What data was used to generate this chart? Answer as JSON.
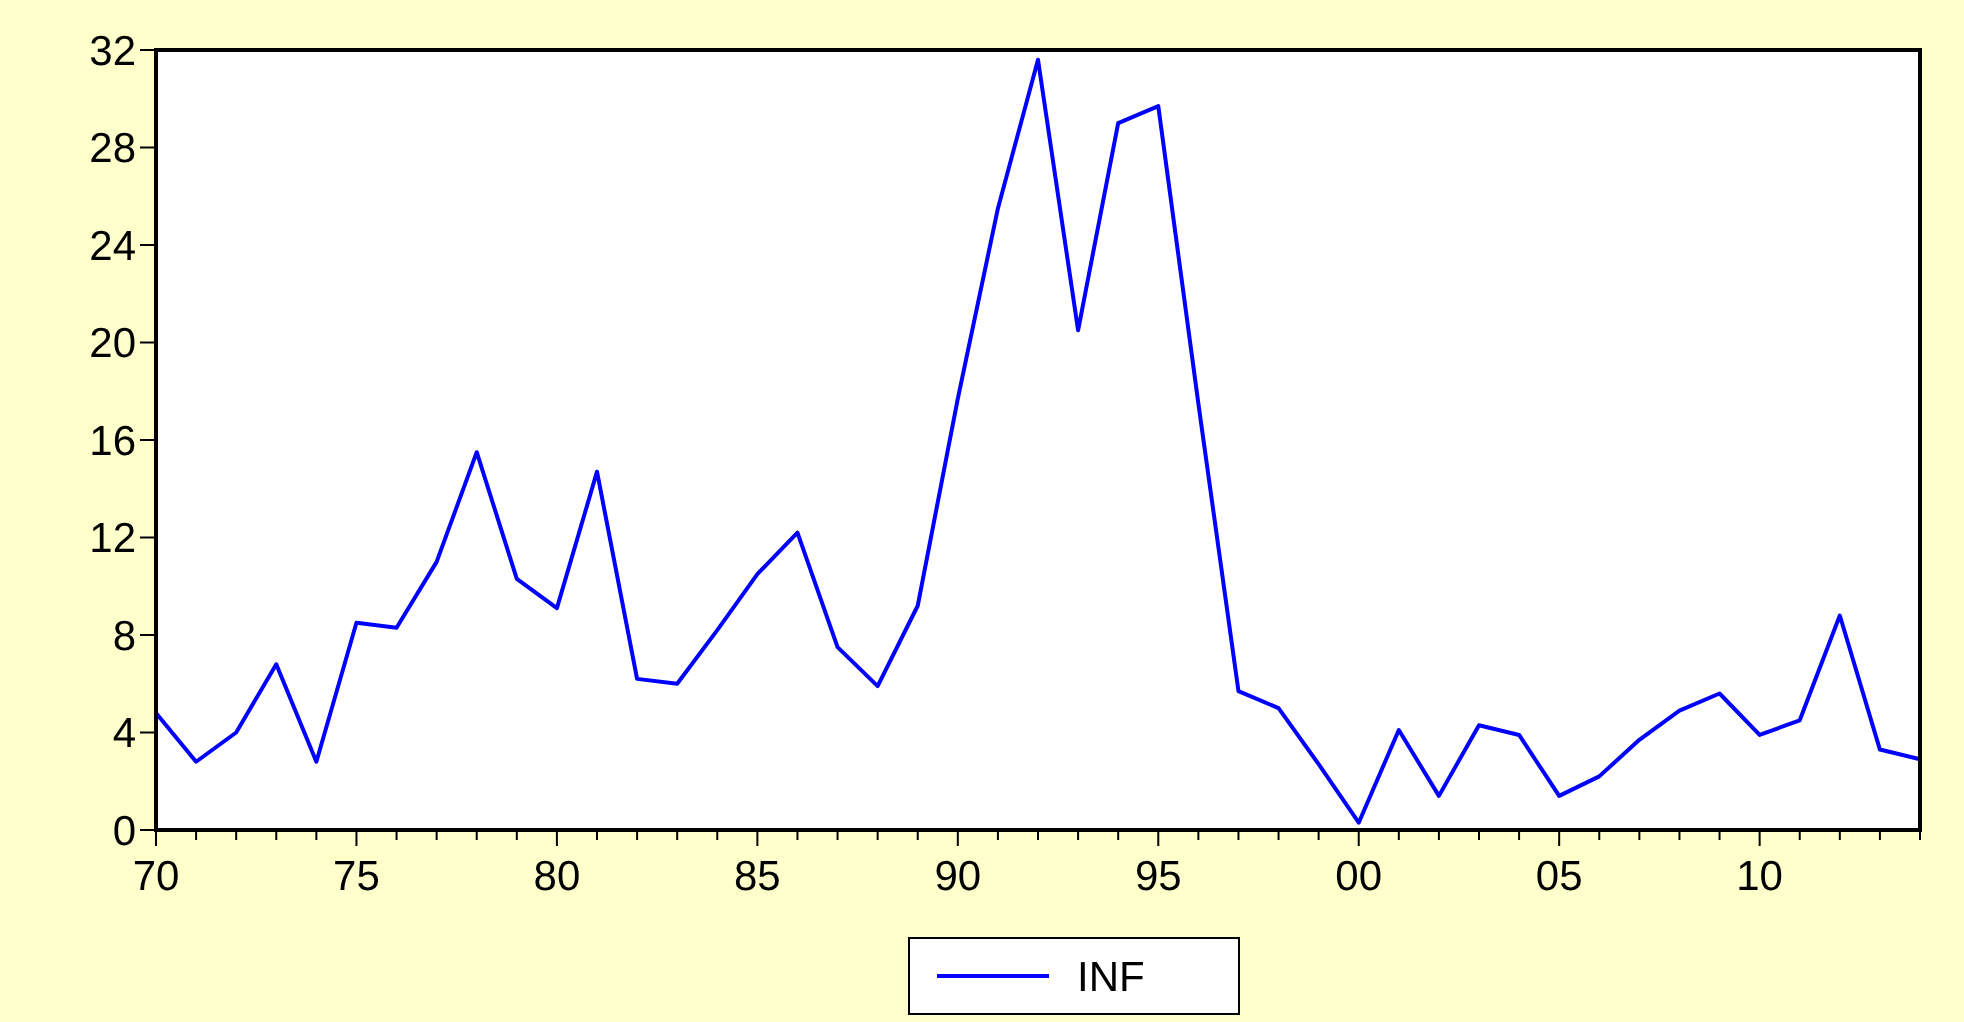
{
  "chart_data": {
    "type": "line",
    "x": [
      1970,
      1971,
      1972,
      1973,
      1974,
      1975,
      1976,
      1977,
      1978,
      1979,
      1980,
      1981,
      1982,
      1983,
      1984,
      1985,
      1986,
      1987,
      1988,
      1989,
      1990,
      1991,
      1992,
      1993,
      1994,
      1995,
      1996,
      1997,
      1998,
      1999,
      2000,
      2001,
      2002,
      2003,
      2004,
      2005,
      2006,
      2007,
      2008,
      2009,
      2010,
      2011,
      2012,
      2013,
      2014
    ],
    "series": [
      {
        "name": "INF",
        "color": "#0000ff",
        "values": [
          4.8,
          2.8,
          4.0,
          6.8,
          2.8,
          8.5,
          8.3,
          11.0,
          15.5,
          10.3,
          9.1,
          14.7,
          6.2,
          6.0,
          8.2,
          10.5,
          12.2,
          7.5,
          5.9,
          9.2,
          17.7,
          25.5,
          31.6,
          20.5,
          29.0,
          29.7,
          17.5,
          5.7,
          5.0,
          2.7,
          0.3,
          4.1,
          1.4,
          4.3,
          3.9,
          1.4,
          2.2,
          3.7,
          4.9,
          5.6,
          3.9,
          4.5,
          8.8,
          3.3,
          2.9
        ]
      }
    ],
    "xlim": [
      1970,
      2014
    ],
    "xticks": [
      {
        "value": 1970,
        "label": "70"
      },
      {
        "value": 1971,
        "label": null
      },
      {
        "value": 1972,
        "label": null
      },
      {
        "value": 1973,
        "label": null
      },
      {
        "value": 1974,
        "label": null
      },
      {
        "value": 1975,
        "label": "75"
      },
      {
        "value": 1976,
        "label": null
      },
      {
        "value": 1977,
        "label": null
      },
      {
        "value": 1978,
        "label": null
      },
      {
        "value": 1979,
        "label": null
      },
      {
        "value": 1980,
        "label": "80"
      },
      {
        "value": 1981,
        "label": null
      },
      {
        "value": 1982,
        "label": null
      },
      {
        "value": 1983,
        "label": null
      },
      {
        "value": 1984,
        "label": null
      },
      {
        "value": 1985,
        "label": "85"
      },
      {
        "value": 1986,
        "label": null
      },
      {
        "value": 1987,
        "label": null
      },
      {
        "value": 1988,
        "label": null
      },
      {
        "value": 1989,
        "label": null
      },
      {
        "value": 1990,
        "label": "90"
      },
      {
        "value": 1991,
        "label": null
      },
      {
        "value": 1992,
        "label": null
      },
      {
        "value": 1993,
        "label": null
      },
      {
        "value": 1994,
        "label": null
      },
      {
        "value": 1995,
        "label": "95"
      },
      {
        "value": 1996,
        "label": null
      },
      {
        "value": 1997,
        "label": null
      },
      {
        "value": 1998,
        "label": null
      },
      {
        "value": 1999,
        "label": null
      },
      {
        "value": 2000,
        "label": "00"
      },
      {
        "value": 2001,
        "label": null
      },
      {
        "value": 2002,
        "label": null
      },
      {
        "value": 2003,
        "label": null
      },
      {
        "value": 2004,
        "label": null
      },
      {
        "value": 2005,
        "label": "05"
      },
      {
        "value": 2006,
        "label": null
      },
      {
        "value": 2007,
        "label": null
      },
      {
        "value": 2008,
        "label": null
      },
      {
        "value": 2009,
        "label": null
      },
      {
        "value": 2010,
        "label": "10"
      },
      {
        "value": 2011,
        "label": null
      },
      {
        "value": 2012,
        "label": null
      },
      {
        "value": 2013,
        "label": null
      },
      {
        "value": 2014,
        "label": null
      }
    ],
    "ylim": [
      0,
      32
    ],
    "yticks": [
      0,
      4,
      8,
      12,
      16,
      20,
      24,
      28,
      32
    ],
    "grid": false,
    "legend": "bottom",
    "marker": "none",
    "line_style": "solid"
  }
}
